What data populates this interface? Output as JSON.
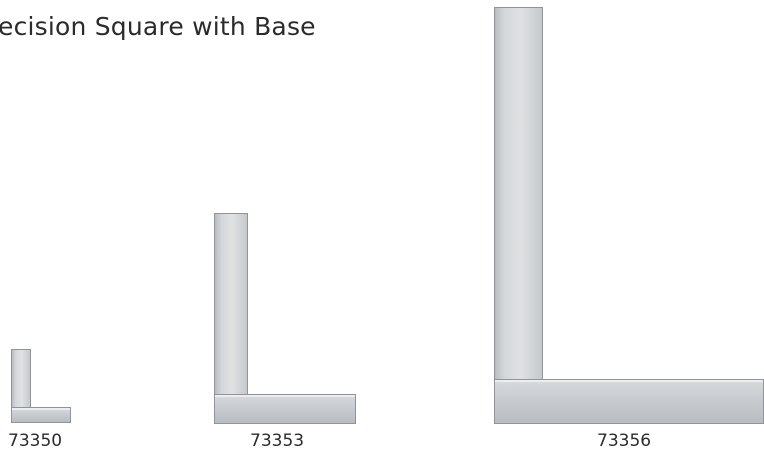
{
  "title": "ecision Square with Base",
  "products": [
    {
      "model": "73350"
    },
    {
      "model": "73353"
    },
    {
      "model": "73356"
    }
  ]
}
